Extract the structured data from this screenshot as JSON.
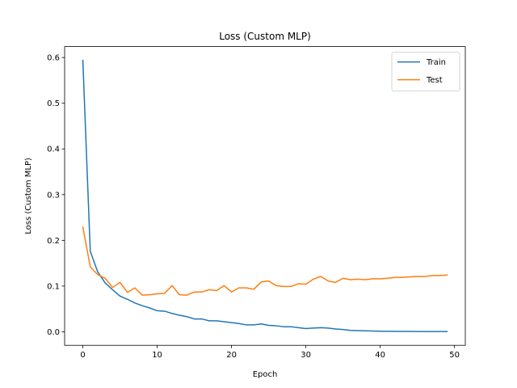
{
  "chart_data": {
    "type": "line",
    "title": "Loss (Custom MLP)",
    "xlabel": "Epoch",
    "ylabel": "Loss (Custom MLP)",
    "xlim": [
      -2.45,
      51.45
    ],
    "ylim": [
      -0.0297,
      0.624
    ],
    "x_ticks": [
      0,
      10,
      20,
      30,
      40,
      50
    ],
    "y_ticks": [
      0.0,
      0.1,
      0.2,
      0.3,
      0.4,
      0.5,
      0.6
    ],
    "y_tick_labels": [
      "0.0",
      "0.1",
      "0.2",
      "0.3",
      "0.4",
      "0.5",
      "0.6"
    ],
    "legend_position": "top-right",
    "grid": false,
    "x": [
      0,
      1,
      2,
      3,
      4,
      5,
      6,
      7,
      8,
      9,
      10,
      11,
      12,
      13,
      14,
      15,
      16,
      17,
      18,
      19,
      20,
      21,
      22,
      23,
      24,
      25,
      26,
      27,
      28,
      29,
      30,
      31,
      32,
      33,
      34,
      35,
      36,
      37,
      38,
      39,
      40,
      41,
      42,
      43,
      44,
      45,
      46,
      47,
      48,
      49
    ],
    "series": [
      {
        "name": "Train",
        "color": "#1f77b4",
        "values": [
          0.594,
          0.176,
          0.131,
          0.107,
          0.092,
          0.078,
          0.071,
          0.063,
          0.057,
          0.052,
          0.046,
          0.045,
          0.04,
          0.036,
          0.033,
          0.028,
          0.028,
          0.024,
          0.024,
          0.022,
          0.02,
          0.018,
          0.015,
          0.015,
          0.017,
          0.014,
          0.013,
          0.011,
          0.011,
          0.009,
          0.007,
          0.008,
          0.009,
          0.008,
          0.006,
          0.005,
          0.003,
          0.0025,
          0.002,
          0.0015,
          0.0012,
          0.001,
          0.001,
          0.0008,
          0.0007,
          0.0006,
          0.0006,
          0.0005,
          0.0005,
          0.0005
        ]
      },
      {
        "name": "Test",
        "color": "#ff7f0e",
        "values": [
          0.229,
          0.142,
          0.125,
          0.117,
          0.097,
          0.108,
          0.086,
          0.096,
          0.08,
          0.081,
          0.083,
          0.084,
          0.101,
          0.081,
          0.08,
          0.087,
          0.087,
          0.092,
          0.09,
          0.101,
          0.087,
          0.096,
          0.096,
          0.093,
          0.109,
          0.111,
          0.101,
          0.099,
          0.099,
          0.105,
          0.104,
          0.115,
          0.121,
          0.111,
          0.108,
          0.117,
          0.114,
          0.115,
          0.114,
          0.116,
          0.116,
          0.117,
          0.119,
          0.119,
          0.12,
          0.121,
          0.121,
          0.123,
          0.123,
          0.124
        ]
      }
    ]
  }
}
